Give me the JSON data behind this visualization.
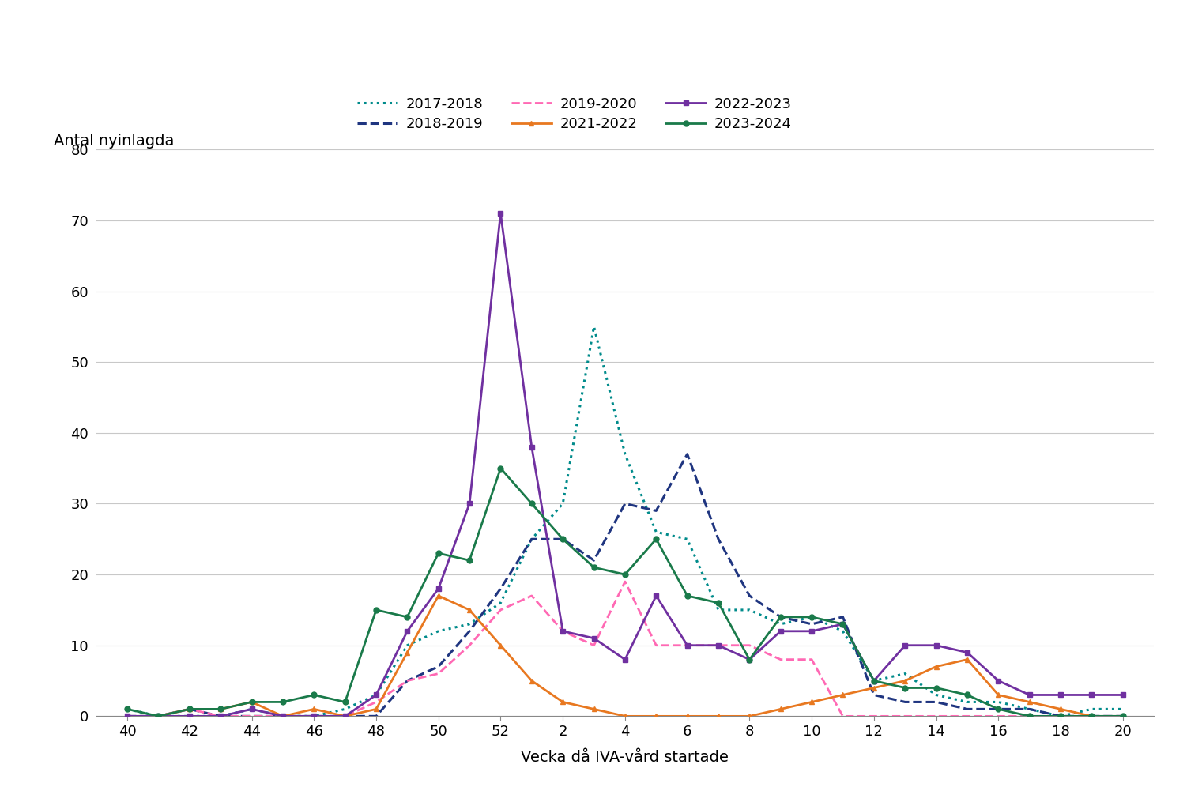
{
  "ylabel": "Antal nyinlagda",
  "xlabel": "Vecka då IVA-vård startade",
  "x_labels": [
    40,
    42,
    44,
    46,
    48,
    50,
    52,
    2,
    4,
    6,
    8,
    10,
    12,
    14,
    16,
    18,
    20
  ],
  "x_positions": [
    40,
    42,
    44,
    46,
    48,
    50,
    52,
    54,
    56,
    58,
    60,
    62,
    64,
    66,
    68,
    70,
    72
  ],
  "ylim": [
    0,
    80
  ],
  "yticks": [
    0,
    10,
    20,
    30,
    40,
    50,
    60,
    70,
    80
  ],
  "series": {
    "2017-2018": {
      "color": "#008b8b",
      "linestyle": "dotted",
      "marker": null,
      "linewidth": 2.2,
      "values": [
        [
          40,
          1
        ],
        [
          41,
          0
        ],
        [
          42,
          0
        ],
        [
          43,
          0
        ],
        [
          44,
          1
        ],
        [
          45,
          0
        ],
        [
          46,
          0
        ],
        [
          47,
          1
        ],
        [
          48,
          3
        ],
        [
          49,
          10
        ],
        [
          50,
          12
        ],
        [
          51,
          13
        ],
        [
          52,
          16
        ],
        [
          53,
          25
        ],
        [
          54,
          30
        ],
        [
          55,
          55
        ],
        [
          56,
          37
        ],
        [
          57,
          26
        ],
        [
          58,
          25
        ],
        [
          59,
          15
        ],
        [
          60,
          15
        ],
        [
          61,
          13
        ],
        [
          62,
          14
        ],
        [
          63,
          12
        ],
        [
          64,
          5
        ],
        [
          65,
          6
        ],
        [
          66,
          3
        ],
        [
          67,
          2
        ],
        [
          68,
          2
        ],
        [
          69,
          1
        ],
        [
          70,
          0
        ],
        [
          71,
          1
        ],
        [
          72,
          1
        ]
      ]
    },
    "2018-2019": {
      "color": "#1f3580",
      "linestyle": "dashed",
      "marker": null,
      "linewidth": 2.2,
      "values": [
        [
          40,
          0
        ],
        [
          41,
          0
        ],
        [
          42,
          1
        ],
        [
          43,
          0
        ],
        [
          44,
          0
        ],
        [
          45,
          0
        ],
        [
          46,
          0
        ],
        [
          47,
          0
        ],
        [
          48,
          0
        ],
        [
          49,
          5
        ],
        [
          50,
          7
        ],
        [
          51,
          12
        ],
        [
          52,
          18
        ],
        [
          53,
          25
        ],
        [
          54,
          25
        ],
        [
          55,
          22
        ],
        [
          56,
          30
        ],
        [
          57,
          29
        ],
        [
          58,
          37
        ],
        [
          59,
          25
        ],
        [
          60,
          17
        ],
        [
          61,
          14
        ],
        [
          62,
          13
        ],
        [
          63,
          14
        ],
        [
          64,
          3
        ],
        [
          65,
          2
        ],
        [
          66,
          2
        ],
        [
          67,
          1
        ],
        [
          68,
          1
        ],
        [
          69,
          1
        ],
        [
          70,
          0
        ],
        [
          71,
          0
        ],
        [
          72,
          0
        ]
      ]
    },
    "2019-2020": {
      "color": "#ff69b4",
      "linestyle": "dashed",
      "marker": null,
      "linewidth": 2.0,
      "values": [
        [
          40,
          0
        ],
        [
          41,
          0
        ],
        [
          42,
          1
        ],
        [
          43,
          0
        ],
        [
          44,
          0
        ],
        [
          45,
          0
        ],
        [
          46,
          0
        ],
        [
          47,
          0
        ],
        [
          48,
          2
        ],
        [
          49,
          5
        ],
        [
          50,
          6
        ],
        [
          51,
          10
        ],
        [
          52,
          15
        ],
        [
          53,
          17
        ],
        [
          54,
          12
        ],
        [
          55,
          10
        ],
        [
          56,
          19
        ],
        [
          57,
          10
        ],
        [
          58,
          10
        ],
        [
          59,
          10
        ],
        [
          60,
          10
        ],
        [
          61,
          8
        ],
        [
          62,
          8
        ],
        [
          63,
          0
        ],
        [
          64,
          0
        ],
        [
          65,
          0
        ],
        [
          66,
          0
        ],
        [
          67,
          0
        ],
        [
          68,
          0
        ],
        [
          69,
          0
        ],
        [
          70,
          0
        ],
        [
          71,
          0
        ],
        [
          72,
          0
        ]
      ]
    },
    "2021-2022": {
      "color": "#e87820",
      "linestyle": "solid",
      "marker": "^",
      "markersize": 5,
      "linewidth": 2.0,
      "values": [
        [
          40,
          0
        ],
        [
          41,
          0
        ],
        [
          42,
          1
        ],
        [
          43,
          1
        ],
        [
          44,
          2
        ],
        [
          45,
          0
        ],
        [
          46,
          1
        ],
        [
          47,
          0
        ],
        [
          48,
          1
        ],
        [
          49,
          9
        ],
        [
          50,
          17
        ],
        [
          51,
          15
        ],
        [
          52,
          10
        ],
        [
          53,
          5
        ],
        [
          54,
          2
        ],
        [
          55,
          1
        ],
        [
          56,
          0
        ],
        [
          57,
          0
        ],
        [
          58,
          0
        ],
        [
          59,
          0
        ],
        [
          60,
          0
        ],
        [
          61,
          1
        ],
        [
          62,
          2
        ],
        [
          63,
          3
        ],
        [
          64,
          4
        ],
        [
          65,
          5
        ],
        [
          66,
          7
        ],
        [
          67,
          8
        ],
        [
          68,
          3
        ],
        [
          69,
          2
        ],
        [
          70,
          1
        ],
        [
          71,
          0
        ],
        [
          72,
          0
        ]
      ]
    },
    "2022-2023": {
      "color": "#7030a0",
      "linestyle": "solid",
      "marker": "s",
      "markersize": 5,
      "linewidth": 2.0,
      "values": [
        [
          40,
          0
        ],
        [
          41,
          0
        ],
        [
          42,
          0
        ],
        [
          43,
          0
        ],
        [
          44,
          1
        ],
        [
          45,
          0
        ],
        [
          46,
          0
        ],
        [
          47,
          0
        ],
        [
          48,
          3
        ],
        [
          49,
          12
        ],
        [
          50,
          18
        ],
        [
          51,
          30
        ],
        [
          52,
          71
        ],
        [
          53,
          38
        ],
        [
          54,
          12
        ],
        [
          55,
          11
        ],
        [
          56,
          8
        ],
        [
          57,
          17
        ],
        [
          58,
          10
        ],
        [
          59,
          10
        ],
        [
          60,
          8
        ],
        [
          61,
          12
        ],
        [
          62,
          12
        ],
        [
          63,
          13
        ],
        [
          64,
          5
        ],
        [
          65,
          10
        ],
        [
          66,
          10
        ],
        [
          67,
          9
        ],
        [
          68,
          5
        ],
        [
          69,
          3
        ],
        [
          70,
          3
        ],
        [
          71,
          3
        ],
        [
          72,
          3
        ]
      ]
    },
    "2023-2024": {
      "color": "#1a7a4a",
      "linestyle": "solid",
      "marker": "o",
      "markersize": 5,
      "linewidth": 2.0,
      "values": [
        [
          40,
          1
        ],
        [
          41,
          0
        ],
        [
          42,
          1
        ],
        [
          43,
          1
        ],
        [
          44,
          2
        ],
        [
          45,
          2
        ],
        [
          46,
          3
        ],
        [
          47,
          2
        ],
        [
          48,
          15
        ],
        [
          49,
          14
        ],
        [
          50,
          23
        ],
        [
          51,
          22
        ],
        [
          52,
          35
        ],
        [
          53,
          30
        ],
        [
          54,
          25
        ],
        [
          55,
          21
        ],
        [
          56,
          20
        ],
        [
          57,
          25
        ],
        [
          58,
          17
        ],
        [
          59,
          16
        ],
        [
          60,
          8
        ],
        [
          61,
          14
        ],
        [
          62,
          14
        ],
        [
          63,
          13
        ],
        [
          64,
          5
        ],
        [
          65,
          4
        ],
        [
          66,
          4
        ],
        [
          67,
          3
        ],
        [
          68,
          1
        ],
        [
          69,
          0
        ],
        [
          70,
          0
        ],
        [
          71,
          0
        ],
        [
          72,
          0
        ]
      ]
    }
  },
  "legend_order": [
    "2017-2018",
    "2018-2019",
    "2019-2020",
    "2021-2022",
    "2022-2023",
    "2023-2024"
  ],
  "background_color": "#ffffff"
}
